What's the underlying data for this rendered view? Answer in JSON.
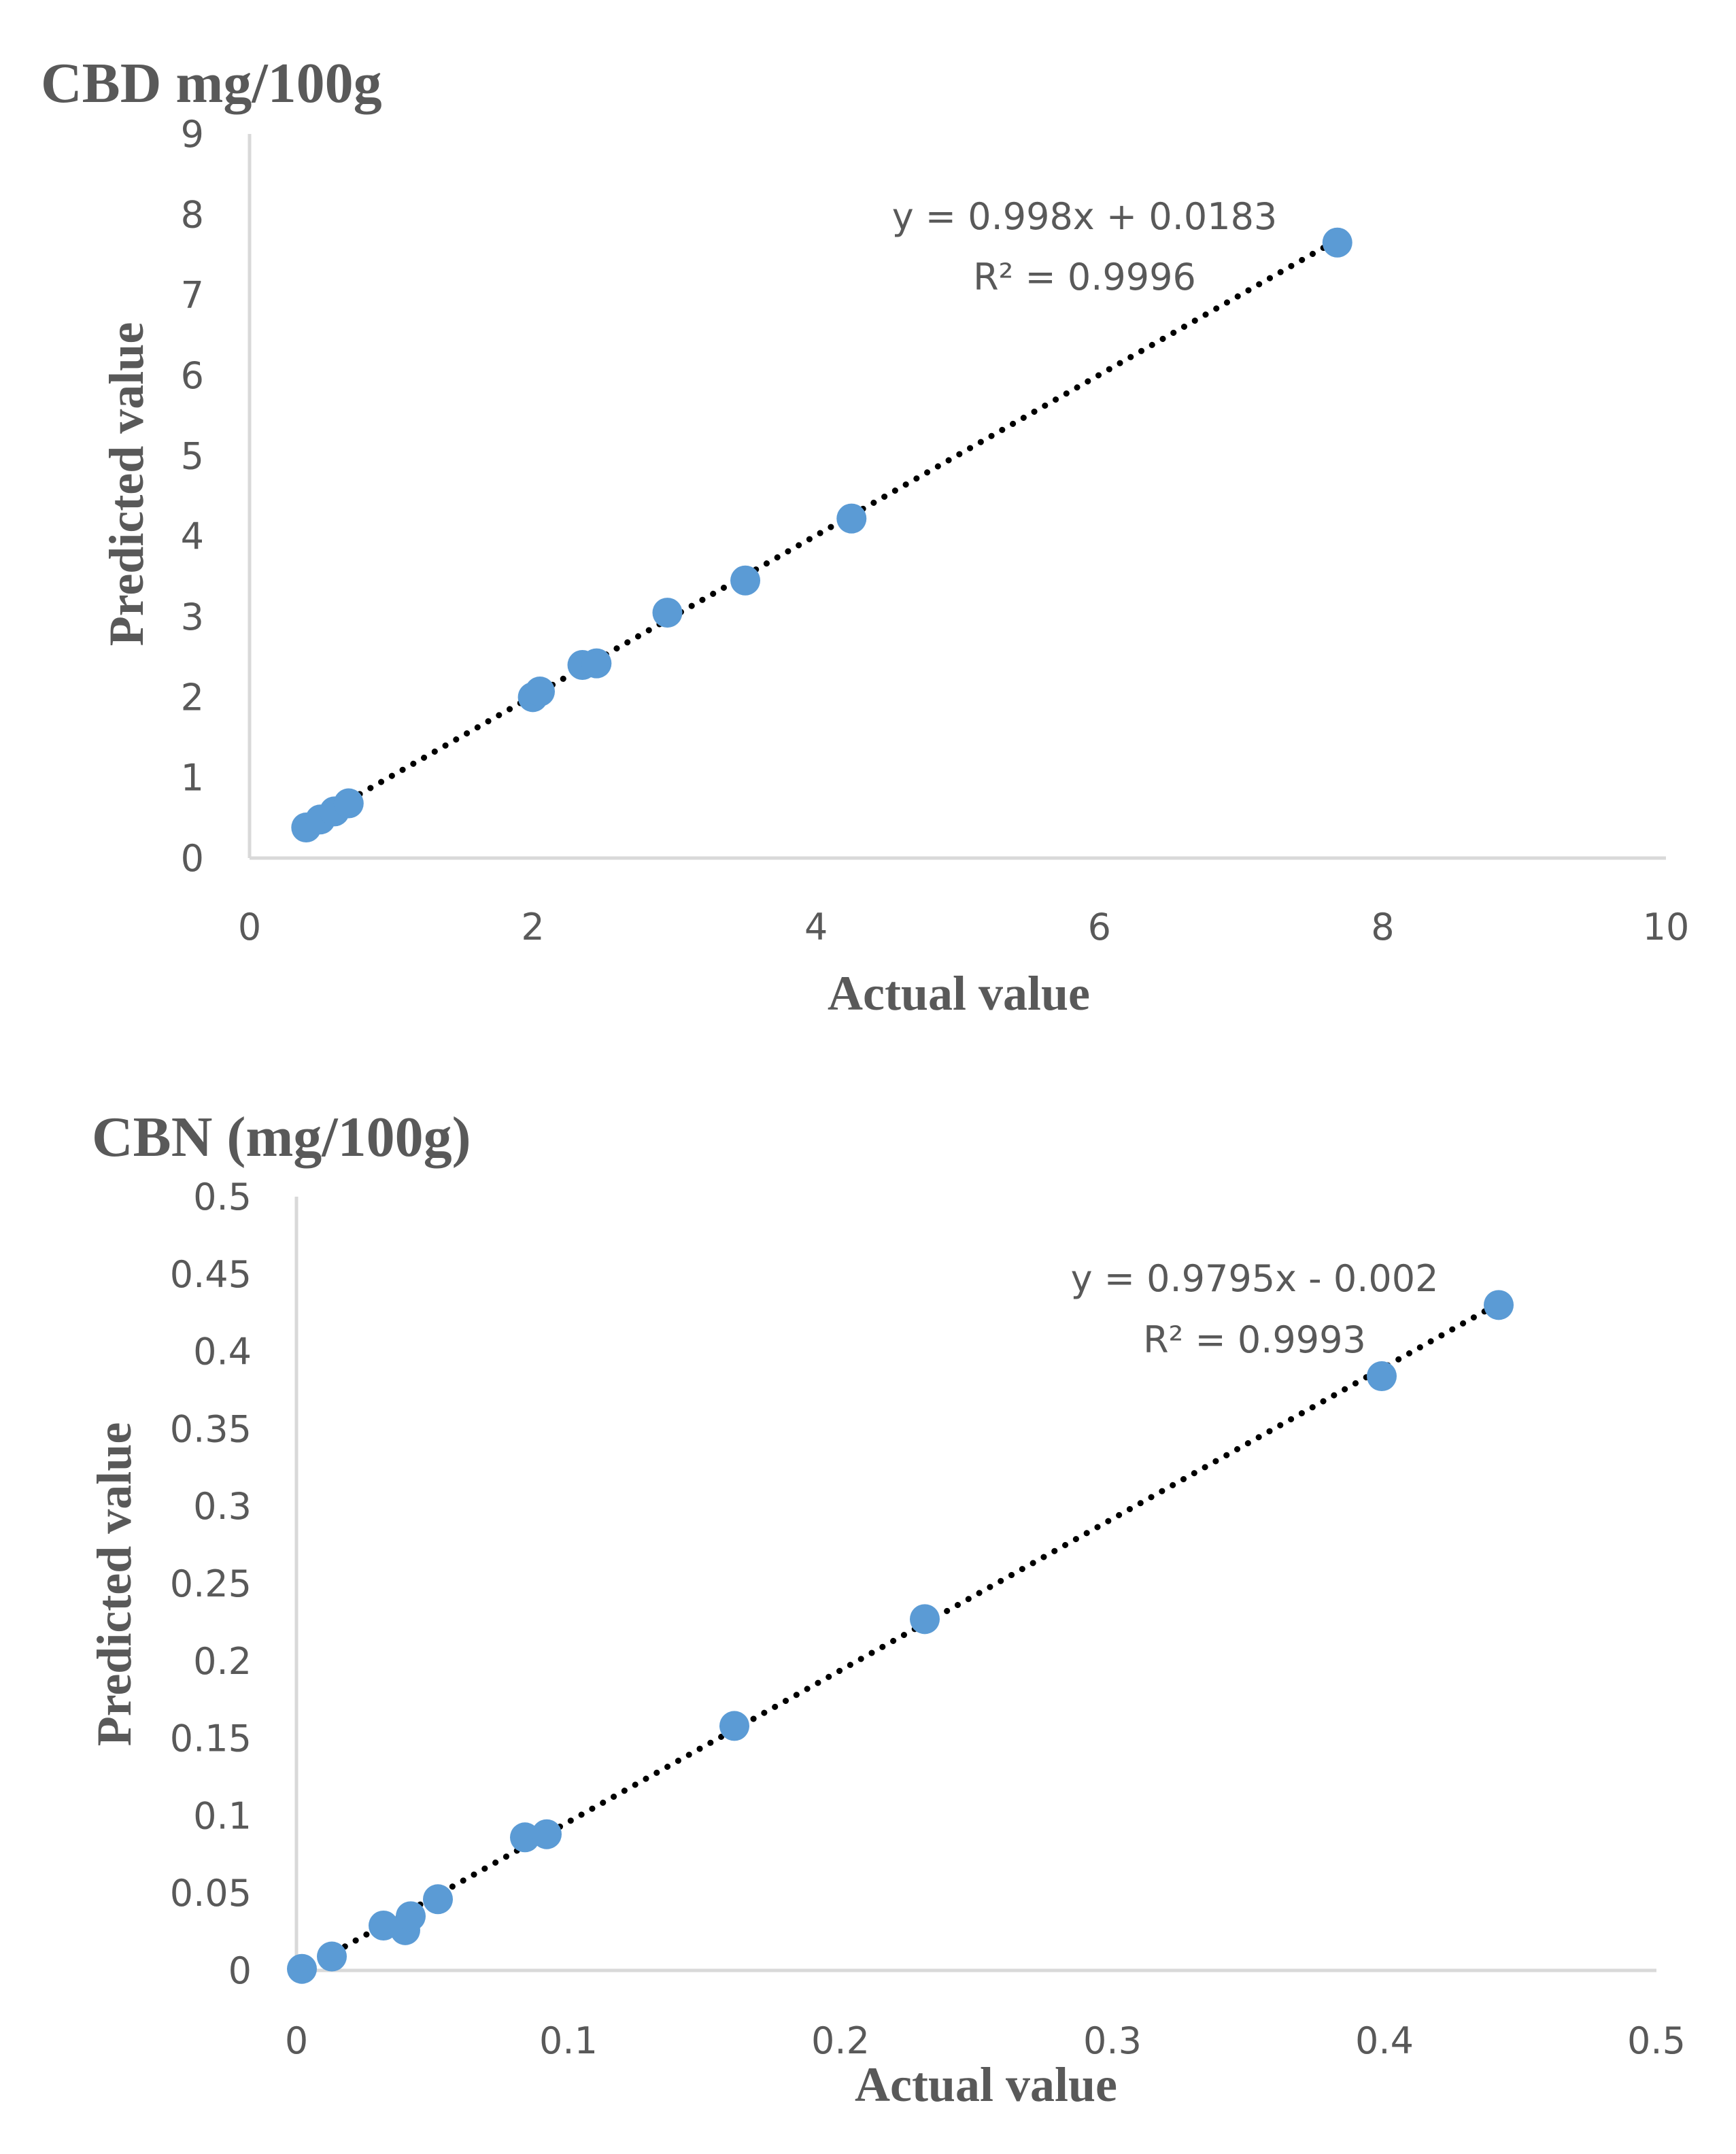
{
  "chart_data": [
    {
      "type": "scatter",
      "title": "CBD mg/100g",
      "xlabel": "Actual value",
      "ylabel": "Predicted value",
      "xlim": [
        0,
        10
      ],
      "ylim": [
        0,
        9
      ],
      "xticks": [
        "0",
        "2",
        "4",
        "6",
        "8",
        "10"
      ],
      "yticks": [
        "0",
        "1",
        "2",
        "3",
        "4",
        "5",
        "6",
        "7",
        "8",
        "9"
      ],
      "grid": false,
      "marker_color": "#5b9bd5",
      "trendline": {
        "slope": 0.998,
        "intercept": 0.0183,
        "style": "dotted",
        "color": "#000000"
      },
      "equation": "y = 0.998x + 0.0183",
      "r_squared": "R² = 0.9996",
      "series": [
        {
          "name": "CBD",
          "x": [
            0.4,
            0.5,
            0.6,
            0.7,
            2.0,
            2.05,
            2.35,
            2.45,
            2.95,
            3.5,
            4.25,
            7.68
          ],
          "y": [
            0.38,
            0.48,
            0.58,
            0.68,
            2.0,
            2.07,
            2.4,
            2.42,
            3.05,
            3.45,
            4.22,
            7.65
          ]
        }
      ]
    },
    {
      "type": "scatter",
      "title": "CBN (mg/100g)",
      "xlabel": "Actual value",
      "ylabel": "Predicted value",
      "xlim": [
        0,
        0.5
      ],
      "ylim": [
        0,
        0.5
      ],
      "xticks": [
        "0",
        "0.1",
        "0.2",
        "0.3",
        "0.4",
        "0.5"
      ],
      "yticks": [
        "0",
        "0.05",
        "0.1",
        "0.15",
        "0.2",
        "0.25",
        "0.3",
        "0.35",
        "0.4",
        "0.45",
        "0.5"
      ],
      "grid": false,
      "marker_color": "#5b9bd5",
      "trendline": {
        "slope": 0.9795,
        "intercept": -0.002,
        "style": "dotted",
        "color": "#000000"
      },
      "equation": "y = 0.9795x - 0.002",
      "r_squared": "R² = 0.9993",
      "series": [
        {
          "name": "CBN",
          "x": [
            0.002,
            0.013,
            0.032,
            0.04,
            0.042,
            0.052,
            0.084,
            0.092,
            0.161,
            0.231,
            0.399,
            0.442
          ],
          "y": [
            0.001,
            0.009,
            0.029,
            0.026,
            0.035,
            0.046,
            0.086,
            0.088,
            0.158,
            0.227,
            0.384,
            0.43
          ]
        }
      ]
    }
  ]
}
